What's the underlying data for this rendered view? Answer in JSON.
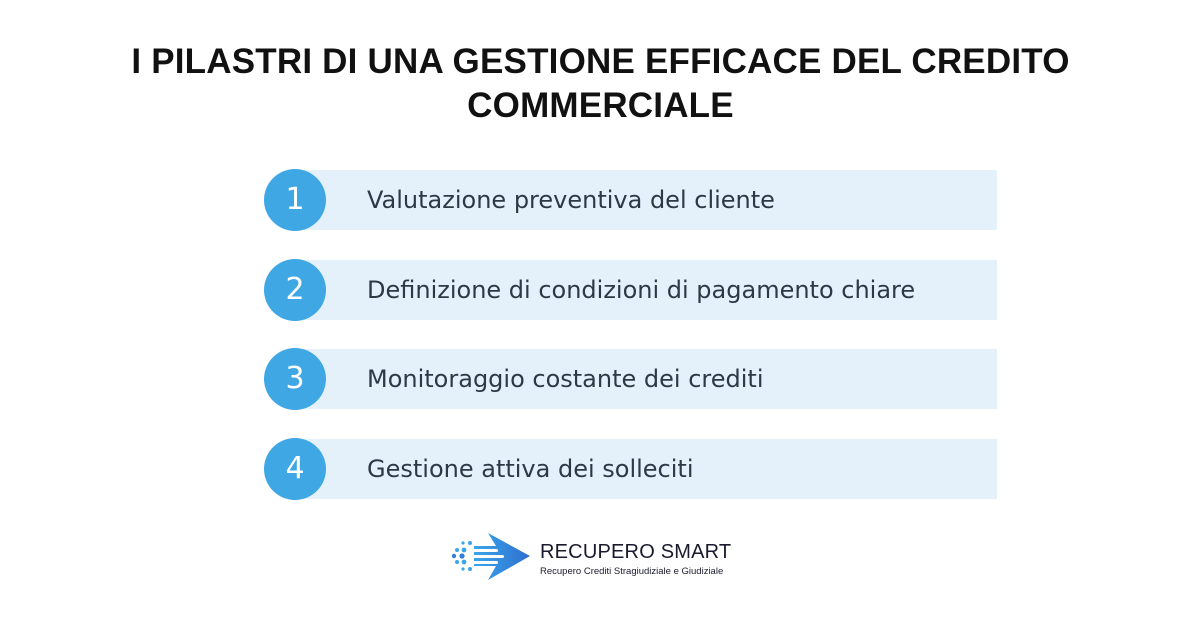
{
  "title": {
    "line1": "I PILASTRI DI UNA GESTIONE EFFICACE DEL CREDITO",
    "line2": "COMMERCIALE"
  },
  "pillars": [
    {
      "number": "1",
      "label": "Valutazione preventiva del cliente"
    },
    {
      "number": "2",
      "label": "Definizione di condizioni di pagamento chiare"
    },
    {
      "number": "3",
      "label": "Monitoraggio costante dei crediti"
    },
    {
      "number": "4",
      "label": "Gestione attiva dei solleciti"
    }
  ],
  "logo": {
    "name": "RECUPERO SMART",
    "tagline": "Recupero Crediti Stragiudiziale e Giudiziale",
    "icon": "arrow-icon"
  },
  "colors": {
    "accent": "#3fa7e3",
    "row_background": "#e4f1fb",
    "logo_blue": "#2f7fd6"
  }
}
